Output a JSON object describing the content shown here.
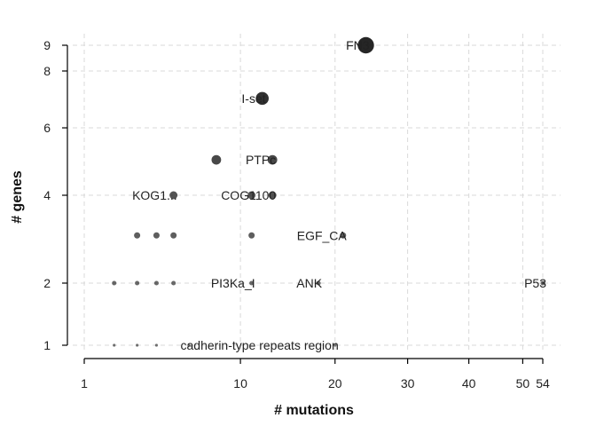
{
  "chart_data": {
    "type": "scatter",
    "xlabel": "# mutations",
    "ylabel": "# genes",
    "x_ticks": [
      1,
      10,
      20,
      30,
      40,
      50,
      54
    ],
    "y_ticks": [
      1,
      2,
      4,
      6,
      8,
      9
    ],
    "xlim": [
      1,
      54
    ],
    "ylim": [
      1,
      9
    ],
    "grid": true,
    "point_color": "#1a1a1a",
    "points": [
      {
        "x": 24,
        "y": 9,
        "label": "FN3"
      },
      {
        "x": 12,
        "y": 7,
        "label": "I-set"
      },
      {
        "x": 8,
        "y": 5,
        "label": ""
      },
      {
        "x": 13,
        "y": 5,
        "label": "PTPc"
      },
      {
        "x": 5,
        "y": 4,
        "label": "KOG1..."
      },
      {
        "x": 11,
        "y": 4,
        "label": ""
      },
      {
        "x": 13,
        "y": 4,
        "label": "COG1100"
      },
      {
        "x": 3,
        "y": 3,
        "label": ""
      },
      {
        "x": 4,
        "y": 3,
        "label": ""
      },
      {
        "x": 5,
        "y": 3,
        "label": ""
      },
      {
        "x": 11,
        "y": 3,
        "label": ""
      },
      {
        "x": 21,
        "y": 3,
        "label": "EGF_CA"
      },
      {
        "x": 2,
        "y": 2,
        "label": ""
      },
      {
        "x": 3,
        "y": 2,
        "label": ""
      },
      {
        "x": 4,
        "y": 2,
        "label": ""
      },
      {
        "x": 5,
        "y": 2,
        "label": ""
      },
      {
        "x": 11,
        "y": 2,
        "label": "PI3Ka_I"
      },
      {
        "x": 18,
        "y": 2,
        "label": "ANK"
      },
      {
        "x": 54,
        "y": 2,
        "label": "P53"
      },
      {
        "x": 2,
        "y": 1,
        "label": ""
      },
      {
        "x": 3,
        "y": 1,
        "label": ""
      },
      {
        "x": 4,
        "y": 1,
        "label": ""
      },
      {
        "x": 6,
        "y": 1,
        "label": ""
      },
      {
        "x": 20,
        "y": 1,
        "label": "cadherin-type repeats region"
      }
    ]
  }
}
